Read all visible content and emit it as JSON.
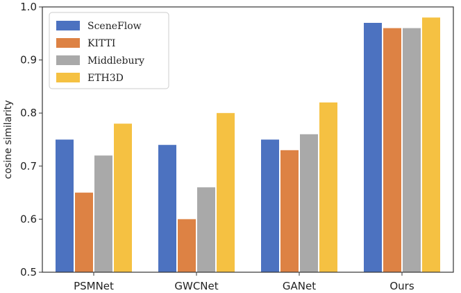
{
  "chart_data": {
    "type": "bar",
    "title": "",
    "xlabel": "",
    "ylabel": "cosine similarity",
    "ylim": [
      0.5,
      1.0
    ],
    "yticks": [
      "0.5",
      "0.6",
      "0.7",
      "0.8",
      "0.9",
      "1.0"
    ],
    "categories": [
      "PSMNet",
      "GWCNet",
      "GANet",
      "Ours"
    ],
    "series": [
      {
        "name": "SceneFlow",
        "color": "#4C72C0",
        "values": [
          0.75,
          0.74,
          0.75,
          0.97
        ]
      },
      {
        "name": "KITTI",
        "color": "#DD8244",
        "values": [
          0.65,
          0.6,
          0.73,
          0.96
        ]
      },
      {
        "name": "Middlebury",
        "color": "#A9A9A9",
        "values": [
          0.72,
          0.66,
          0.76,
          0.96
        ]
      },
      {
        "name": "ETH3D",
        "color": "#F5C142",
        "values": [
          0.78,
          0.8,
          0.82,
          0.98
        ]
      }
    ],
    "legend_position": "top-left",
    "grid": false
  }
}
